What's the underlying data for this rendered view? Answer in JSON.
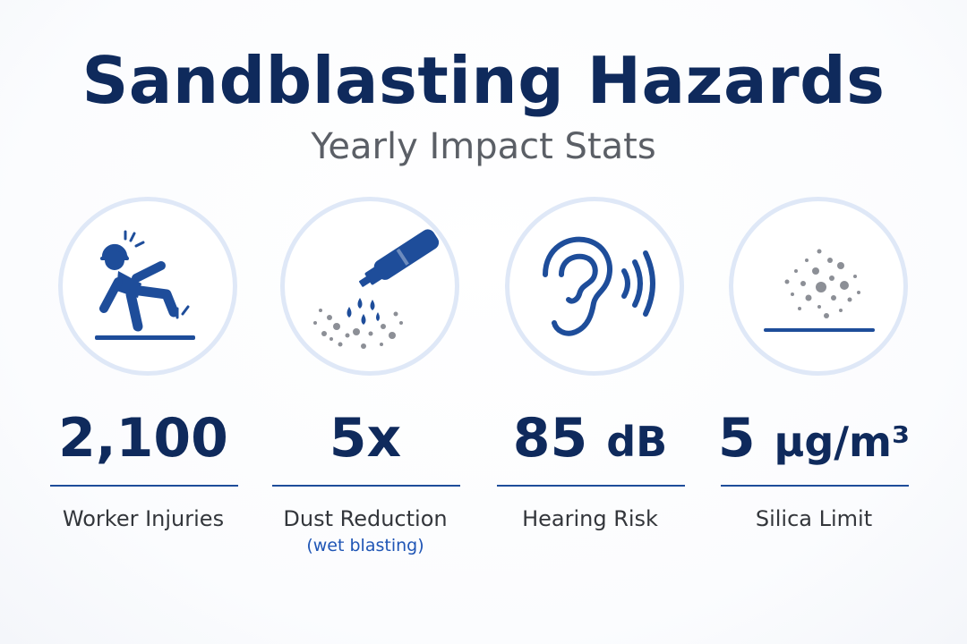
{
  "header": {
    "title": "Sandblasting Hazards",
    "subtitle": "Yearly Impact Stats"
  },
  "colors": {
    "navy": "#0f2a5c",
    "accent_blue": "#1e4d9a",
    "note_blue": "#1f55b5",
    "circle_ring": "#dfe8f7",
    "dust_gray": "#8c8f96"
  },
  "stats": [
    {
      "icon": "falling-worker-icon",
      "value": "2,100",
      "unit": "",
      "label": "Worker Injuries",
      "note": ""
    },
    {
      "icon": "spray-nozzle-icon",
      "value": "5x",
      "unit": "",
      "label": "Dust Reduction",
      "note": "(wet blasting)"
    },
    {
      "icon": "ear-sound-icon",
      "value": "85",
      "unit": "dB",
      "label": "Hearing Risk",
      "note": ""
    },
    {
      "icon": "dust-particles-icon",
      "value": "5",
      "unit": "µg/m³",
      "label": "Silica Limit",
      "note": ""
    }
  ]
}
